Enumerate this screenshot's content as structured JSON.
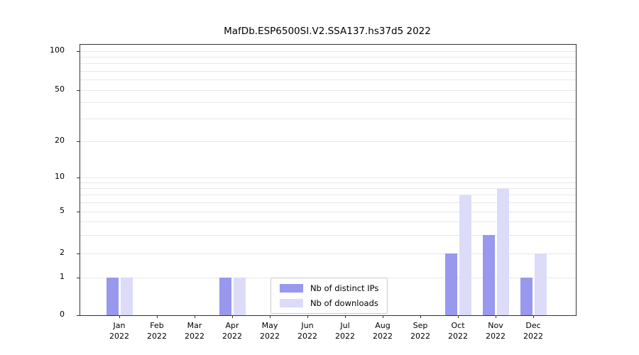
{
  "figure": {
    "title": "MafDb.ESP6500SI.V2.SSA137.hs37d5 2022"
  },
  "chart_data": {
    "type": "bar",
    "title": "MafDb.ESP6500SI.V2.SSA137.hs37d5 2022",
    "categories": [
      "Jan",
      "Feb",
      "Mar",
      "Apr",
      "May",
      "Jun",
      "Jul",
      "Aug",
      "Sep",
      "Oct",
      "Nov",
      "Dec"
    ],
    "x_tick_second_line": "2022",
    "series": [
      {
        "name": "Nb of distinct IPs",
        "color": "#9898ee",
        "values": [
          1,
          0,
          0,
          1,
          0,
          0,
          0,
          0,
          0,
          2,
          3,
          1
        ]
      },
      {
        "name": "Nb of downloads",
        "color": "#dcdcf8",
        "values": [
          1,
          0,
          0,
          1,
          0,
          0,
          0,
          0,
          0,
          7,
          8,
          2
        ]
      }
    ],
    "yscale": "symlog",
    "ylim": [
      0,
      110
    ],
    "y_ticks": [
      0,
      1,
      2,
      5,
      10,
      20,
      50,
      100
    ],
    "gridline_values": [
      1,
      2,
      3,
      4,
      5,
      6,
      7,
      8,
      9,
      10,
      20,
      30,
      40,
      50,
      60,
      70,
      80,
      90,
      100
    ],
    "grid": "horizontal",
    "legend_position": "lower center inside plot",
    "y_scale_anchors": [
      [
        0,
        0
      ],
      [
        1,
        0.139
      ],
      [
        2,
        0.228
      ],
      [
        5,
        0.383
      ],
      [
        10,
        0.509
      ],
      [
        20,
        0.643
      ],
      [
        50,
        0.832
      ],
      [
        100,
        0.976
      ]
    ]
  },
  "legend": {
    "items": [
      "Nb of distinct IPs",
      "Nb of downloads"
    ]
  }
}
